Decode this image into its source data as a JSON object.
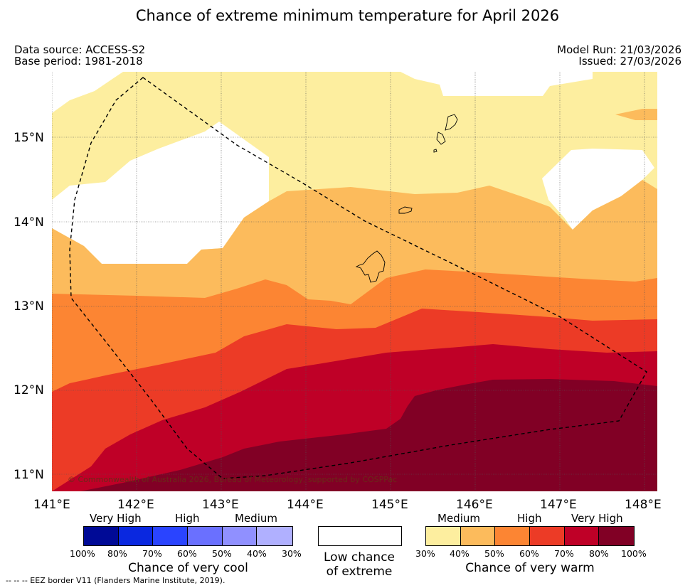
{
  "title": "Chance of extreme minimum temperature for April 2026",
  "header": {
    "data_source": "Data source: ACCESS-S2",
    "base_period": "Base period: 1981-2018",
    "model_run": "Model Run: 21/03/2026",
    "issued": "Issued: 27/03/2026"
  },
  "map": {
    "lon_range": [
      141,
      148.15
    ],
    "lat_range": [
      10.8,
      15.8
    ],
    "x_ticks": [
      "141°E",
      "142°E",
      "143°E",
      "144°E",
      "145°E",
      "146°E",
      "147°E",
      "148°E"
    ],
    "y_ticks": [
      "15°N",
      "14°N",
      "13°N",
      "12°N",
      "11°N"
    ],
    "copyright": "© Commonwealth of Australia 2026, Bureau of Meteorology, supported by COSPPac",
    "colors": {
      "warm_30_40": "#fdee9f",
      "warm_40_50": "#fcbb5c",
      "warm_50_60": "#fc8533",
      "warm_60_70": "#ec3b26",
      "warm_70_80": "#bf0027",
      "warm_80_100": "#810025",
      "low_chance": "#ffffff"
    }
  },
  "legend": {
    "cool": {
      "headings": [
        "Very High",
        "High",
        "Medium"
      ],
      "colors": [
        "#000a96",
        "#0a28e0",
        "#2a44ff",
        "#6a70ff",
        "#9090ff",
        "#b0b0ff"
      ],
      "ticks": [
        "100%",
        "80%",
        "70%",
        "60%",
        "50%",
        "40%",
        "30%"
      ],
      "caption": "Chance of very cool"
    },
    "low": {
      "caption_line1": "Low chance",
      "caption_line2": "of extreme"
    },
    "warm": {
      "headings": [
        "Medium",
        "High",
        "Very High"
      ],
      "colors": [
        "#fdee9f",
        "#fcbb5c",
        "#fc8533",
        "#ec3b26",
        "#bf0027",
        "#810025"
      ],
      "ticks": [
        "30%",
        "40%",
        "50%",
        "60%",
        "70%",
        "80%",
        "100%"
      ],
      "caption": "Chance of very warm"
    }
  },
  "footer": "--  --  -- EEZ border V11 (Flanders Marine Institute, 2019)."
}
